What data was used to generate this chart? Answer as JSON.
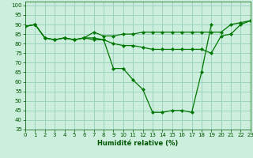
{
  "xlabel": "Humidité relative (%)",
  "background_color": "#cceedd",
  "grid_color": "#99ccbb",
  "line_color": "#007700",
  "marker_color": "#007700",
  "xlim": [
    0,
    23
  ],
  "ylim": [
    35,
    102
  ],
  "yticks": [
    35,
    40,
    45,
    50,
    55,
    60,
    65,
    70,
    75,
    80,
    85,
    90,
    95,
    100
  ],
  "xticks": [
    0,
    1,
    2,
    3,
    4,
    5,
    6,
    7,
    8,
    9,
    10,
    11,
    12,
    13,
    14,
    15,
    16,
    17,
    18,
    19,
    20,
    21,
    22,
    23
  ],
  "series": [
    {
      "x": [
        0,
        1,
        2,
        3,
        4,
        5,
        6,
        7,
        8,
        9,
        10,
        11,
        12,
        13,
        14,
        15,
        16,
        17,
        18,
        19,
        20,
        21,
        22,
        23
      ],
      "y": [
        89,
        90,
        83,
        82,
        83,
        82,
        83,
        86,
        84,
        84,
        85,
        85,
        86,
        86,
        86,
        86,
        86,
        86,
        86,
        86,
        86,
        90,
        91,
        92
      ]
    },
    {
      "x": [
        0,
        1,
        2,
        3,
        4,
        5,
        6,
        7,
        8,
        9,
        10,
        11,
        12,
        13,
        14,
        15,
        16,
        17,
        18,
        19,
        20,
        21,
        22,
        23
      ],
      "y": [
        89,
        90,
        83,
        82,
        83,
        82,
        83,
        82,
        82,
        80,
        79,
        79,
        78,
        77,
        77,
        77,
        77,
        77,
        77,
        75,
        84,
        85,
        90,
        92
      ]
    },
    {
      "x": [
        0,
        1,
        2,
        3,
        4,
        5,
        6,
        7,
        8,
        9,
        10,
        11,
        12,
        13,
        14,
        15,
        16,
        17,
        18,
        19,
        20,
        21,
        22,
        23
      ],
      "y": [
        89,
        90,
        83,
        82,
        83,
        82,
        83,
        83,
        82,
        67,
        67,
        61,
        56,
        44,
        44,
        45,
        45,
        44,
        65,
        90,
        null,
        null,
        null,
        null
      ]
    }
  ]
}
